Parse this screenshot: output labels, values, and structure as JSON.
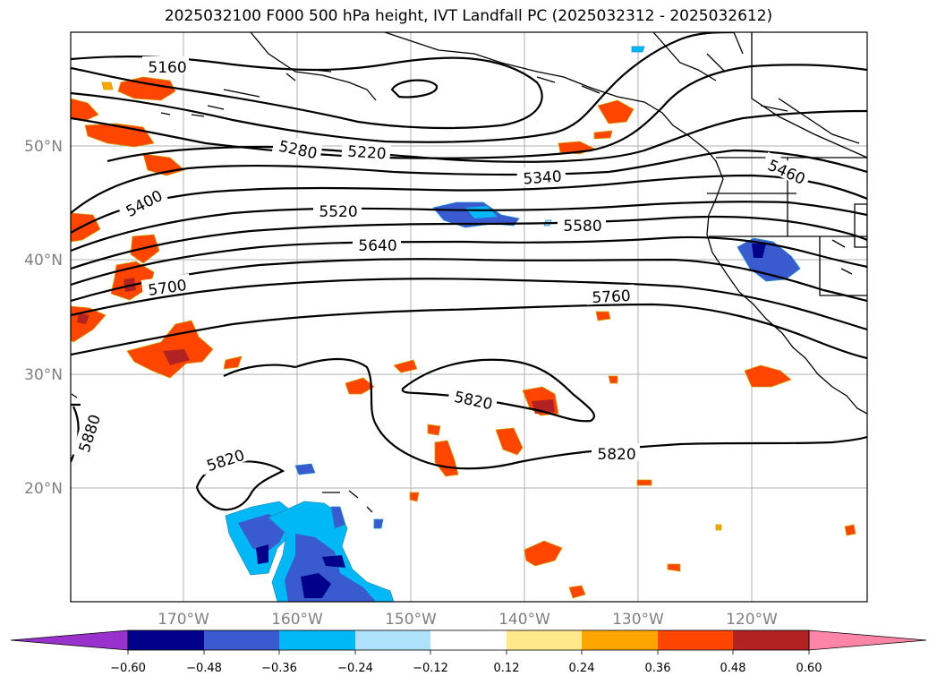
{
  "title": "2025032100 F000 500 hPa height, IVT Landfall PC (2025032312 - 2025032612)",
  "lat_labels": [
    "50°N",
    "40°N",
    "30°N",
    "20°N"
  ],
  "lon_labels": [
    "170°W",
    "160°W",
    "150°W",
    "140°W",
    "130°W",
    "120°W"
  ],
  "contour_labels": [
    "5160",
    "5220",
    "5280",
    "5340",
    "5400",
    "5460",
    "5520",
    "5580",
    "5640",
    "5700",
    "5760",
    "5820",
    "5820",
    "5820",
    "5880"
  ],
  "colorbar": {
    "ticks": [
      "−0.60",
      "−0.48",
      "−0.36",
      "−0.24",
      "−0.12",
      "0.12",
      "0.24",
      "0.36",
      "0.48",
      "0.60"
    ],
    "colors": [
      "#9932cc",
      "#00008b",
      "#3a5bcf",
      "#00b8f5",
      "#aee1fa",
      "#ffffff",
      "#ffe98a",
      "#ffa500",
      "#ff4500",
      "#b22222",
      "#ff85a8"
    ]
  }
}
